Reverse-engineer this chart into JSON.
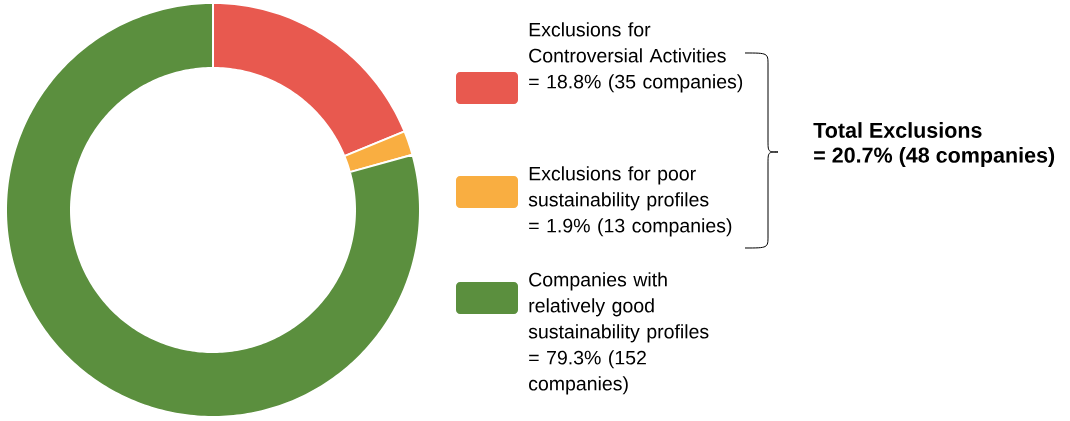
{
  "chart_data": {
    "type": "donut",
    "categories": [
      "Exclusions for Controversial Activities",
      "Exclusions for poor sustainability profiles",
      "Companies with relatively good sustainability profiles"
    ],
    "values": [
      18.8,
      1.9,
      79.3
    ],
    "colors": [
      "#e8594f",
      "#f9ae41",
      "#5b8f3e"
    ],
    "value_labels": [
      "= 18.8% (35 companies)",
      "= 1.9% (13 companies)",
      "= 79.3% (152 companies)"
    ],
    "legend": "right",
    "annotations": [
      "Total Exclusions",
      "= 20.7% (48 companies)"
    ]
  }
}
